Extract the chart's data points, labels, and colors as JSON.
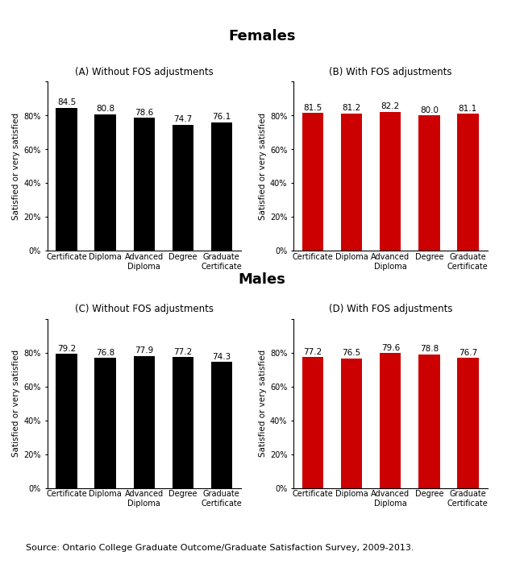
{
  "title_females": "Females",
  "title_males": "Males",
  "subtitle_A": "(A) Without FOS adjustments",
  "subtitle_B": "(B) With FOS adjustments",
  "subtitle_C": "(C) Without FOS adjustments",
  "subtitle_D": "(D) With FOS adjustments",
  "categories": [
    "Certificate",
    "Diploma",
    "Advanced\nDiploma",
    "Degree",
    "Graduate\nCertificate"
  ],
  "female_no_fos": [
    84.5,
    80.8,
    78.6,
    74.7,
    76.1
  ],
  "female_fos": [
    81.5,
    81.2,
    82.2,
    80.0,
    81.1
  ],
  "male_no_fos": [
    79.2,
    76.8,
    77.9,
    77.2,
    74.3
  ],
  "male_fos": [
    77.2,
    76.5,
    79.6,
    78.8,
    76.7
  ],
  "color_black": "#000000",
  "color_red": "#cc0000",
  "ylabel": "Satisfied or very satisfied",
  "ylim": [
    0,
    100
  ],
  "yticks": [
    0,
    20,
    40,
    60,
    80,
    100
  ],
  "ytick_labels": [
    "0%",
    "20%",
    "40%",
    "60%",
    "80%",
    ""
  ],
  "source": "Source: Ontario College Graduate Outcome/Graduate Satisfaction Survey, 2009-2013.",
  "source_fontsize": 8,
  "title_fontsize": 13,
  "subtitle_fontsize": 8.5,
  "bar_value_fontsize": 7.5,
  "ylabel_fontsize": 7.5,
  "tick_fontsize": 7
}
